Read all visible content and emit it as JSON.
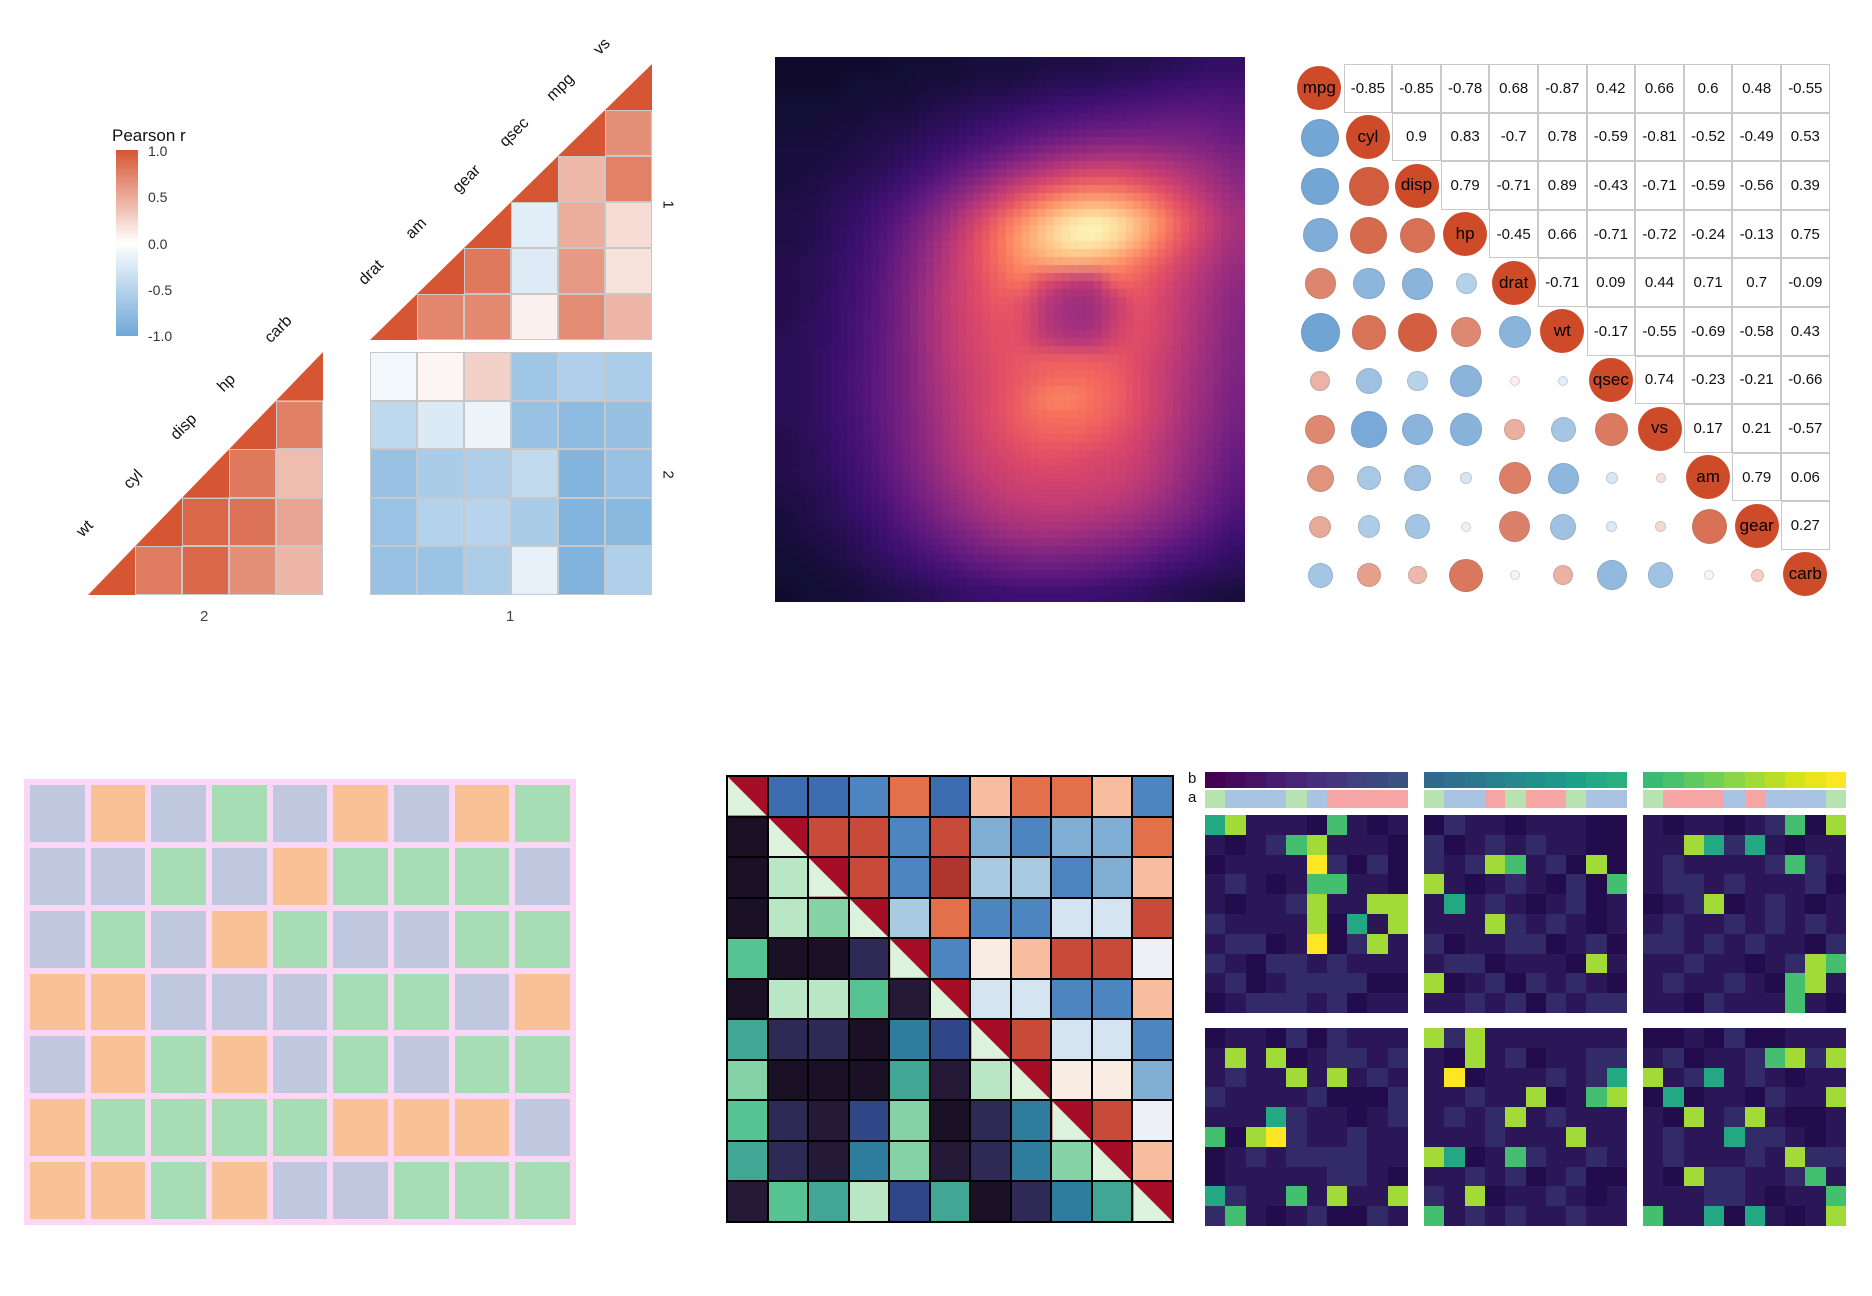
{
  "chart_data": [
    {
      "id": "corr-triangle-facets",
      "type": "heatmap",
      "legend_title": "Pearson r",
      "legend_ticks": [
        "1.0",
        "0.5",
        "0.0",
        "-0.5",
        "-1.0"
      ],
      "facet_x_labels": [
        "2",
        "1"
      ],
      "facet_y_labels": [
        "1",
        "2"
      ],
      "group1_vars": [
        "drat",
        "am",
        "gear",
        "qsec",
        "mpg",
        "vs"
      ],
      "group2_vars": [
        "wt",
        "cyl",
        "disp",
        "hp",
        "carb"
      ],
      "pos_color": "#d65633",
      "neg_color": "#6ea8d8",
      "grid_line_color": "#c8c8c8"
    },
    {
      "id": "density-heatmap",
      "type": "heatmap",
      "colormap": "magma",
      "colormap_stops": [
        [
          0,
          "#000004"
        ],
        [
          0.14,
          "#140e36"
        ],
        [
          0.27,
          "#3b0f70"
        ],
        [
          0.39,
          "#641a80"
        ],
        [
          0.51,
          "#8c2981"
        ],
        [
          0.62,
          "#b73779"
        ],
        [
          0.72,
          "#de4968"
        ],
        [
          0.81,
          "#f7705c"
        ],
        [
          0.88,
          "#fe9f6d"
        ],
        [
          0.95,
          "#fecf92"
        ],
        [
          1,
          "#fcfdbf"
        ]
      ],
      "grid": [
        [
          3,
          3,
          3,
          3,
          3,
          4,
          4,
          4,
          5,
          5,
          5,
          6,
          6,
          6,
          7,
          7,
          8,
          9,
          10,
          10
        ],
        [
          3,
          3,
          3,
          4,
          4,
          4,
          5,
          5,
          6,
          6,
          7,
          8,
          9,
          9,
          10,
          11,
          12,
          13,
          14,
          14
        ],
        [
          4,
          4,
          4,
          4,
          5,
          5,
          6,
          7,
          8,
          9,
          10,
          12,
          13,
          14,
          15,
          16,
          17,
          18,
          18,
          17
        ],
        [
          4,
          4,
          5,
          5,
          6,
          6,
          8,
          9,
          11,
          13,
          15,
          17,
          19,
          21,
          22,
          23,
          24,
          24,
          23,
          21
        ],
        [
          5,
          5,
          5,
          6,
          7,
          8,
          10,
          12,
          15,
          18,
          22,
          26,
          29,
          32,
          33,
          33,
          32,
          30,
          28,
          25
        ],
        [
          5,
          5,
          6,
          7,
          8,
          10,
          13,
          17,
          22,
          28,
          34,
          40,
          45,
          48,
          49,
          47,
          44,
          40,
          35,
          30
        ],
        [
          5,
          6,
          7,
          8,
          10,
          13,
          18,
          24,
          32,
          41,
          50,
          58,
          64,
          67,
          66,
          62,
          56,
          48,
          41,
          34
        ],
        [
          6,
          6,
          8,
          10,
          13,
          17,
          24,
          33,
          44,
          55,
          66,
          75,
          82,
          85,
          83,
          77,
          68,
          57,
          47,
          38
        ],
        [
          6,
          7,
          9,
          11,
          15,
          21,
          30,
          41,
          54,
          67,
          78,
          88,
          95,
          98,
          95,
          87,
          76,
          63,
          51,
          41
        ],
        [
          6,
          7,
          9,
          12,
          17,
          24,
          34,
          46,
          59,
          71,
          82,
          90,
          96,
          97,
          93,
          84,
          72,
          60,
          49,
          40
        ],
        [
          7,
          8,
          10,
          13,
          18,
          26,
          36,
          48,
          60,
          70,
          78,
          83,
          85,
          84,
          80,
          73,
          64,
          54,
          45,
          37
        ],
        [
          7,
          8,
          10,
          14,
          19,
          27,
          38,
          49,
          59,
          67,
          72,
          60,
          52,
          50,
          68,
          66,
          59,
          50,
          42,
          35
        ],
        [
          7,
          8,
          11,
          14,
          20,
          28,
          39,
          50,
          58,
          64,
          62,
          48,
          40,
          40,
          52,
          62,
          56,
          48,
          40,
          33
        ],
        [
          7,
          9,
          11,
          15,
          20,
          28,
          39,
          49,
          57,
          62,
          60,
          46,
          39,
          39,
          52,
          60,
          55,
          47,
          39,
          32
        ],
        [
          8,
          9,
          11,
          15,
          21,
          28,
          39,
          49,
          56,
          61,
          60,
          50,
          46,
          46,
          56,
          60,
          54,
          46,
          38,
          31
        ],
        [
          8,
          9,
          12,
          15,
          21,
          28,
          38,
          48,
          55,
          60,
          63,
          65,
          65,
          64,
          63,
          59,
          52,
          44,
          37,
          30
        ],
        [
          8,
          9,
          12,
          16,
          21,
          28,
          38,
          47,
          54,
          60,
          64,
          68,
          70,
          69,
          65,
          59,
          51,
          43,
          36,
          29
        ],
        [
          8,
          9,
          12,
          16,
          21,
          28,
          37,
          46,
          54,
          60,
          66,
          74,
          75,
          71,
          66,
          59,
          51,
          42,
          35,
          28
        ],
        [
          8,
          9,
          12,
          15,
          21,
          27,
          36,
          45,
          53,
          60,
          66,
          70,
          71,
          69,
          64,
          58,
          50,
          41,
          34,
          27
        ],
        [
          7,
          9,
          11,
          15,
          20,
          27,
          35,
          44,
          52,
          58,
          63,
          66,
          66,
          64,
          60,
          55,
          47,
          39,
          32,
          25
        ],
        [
          7,
          8,
          11,
          14,
          19,
          26,
          34,
          43,
          50,
          55,
          59,
          61,
          60,
          58,
          56,
          52,
          45,
          37,
          30,
          23
        ],
        [
          7,
          8,
          10,
          13,
          18,
          24,
          32,
          40,
          47,
          52,
          55,
          56,
          56,
          55,
          53,
          49,
          43,
          35,
          28,
          21
        ],
        [
          6,
          7,
          9,
          12,
          16,
          22,
          29,
          36,
          43,
          48,
          51,
          52,
          52,
          51,
          49,
          45,
          39,
          32,
          25,
          19
        ],
        [
          5,
          7,
          8,
          11,
          14,
          19,
          25,
          32,
          38,
          43,
          46,
          47,
          47,
          45,
          43,
          39,
          34,
          28,
          22,
          16
        ],
        [
          5,
          6,
          7,
          9,
          12,
          16,
          21,
          26,
          31,
          36,
          39,
          40,
          39,
          37,
          35,
          31,
          27,
          22,
          17,
          13
        ],
        [
          4,
          5,
          6,
          8,
          10,
          13,
          16,
          20,
          24,
          27,
          29,
          30,
          29,
          28,
          26,
          23,
          19,
          16,
          13,
          10
        ],
        [
          4,
          4,
          5,
          6,
          8,
          10,
          12,
          14,
          17,
          19,
          21,
          21,
          21,
          20,
          18,
          16,
          13,
          11,
          9,
          8
        ],
        [
          3,
          4,
          4,
          5,
          6,
          7,
          8,
          10,
          11,
          12,
          13,
          13,
          13,
          12,
          11,
          10,
          8,
          7,
          6,
          5
        ]
      ]
    },
    {
      "id": "corrplot-mixed",
      "type": "heatmap",
      "variables": [
        "mpg",
        "cyl",
        "disp",
        "hp",
        "drat",
        "wt",
        "qsec",
        "vs",
        "am",
        "gear",
        "carb"
      ],
      "matrix": [
        [
          1,
          -0.85,
          -0.85,
          -0.78,
          0.68,
          -0.87,
          0.42,
          0.66,
          0.6,
          0.48,
          -0.55
        ],
        [
          -0.85,
          1,
          0.9,
          0.83,
          -0.7,
          0.78,
          -0.59,
          -0.81,
          -0.52,
          -0.49,
          0.53
        ],
        [
          -0.85,
          0.9,
          1,
          0.79,
          -0.71,
          0.89,
          -0.43,
          -0.71,
          -0.59,
          -0.56,
          0.39
        ],
        [
          -0.78,
          0.83,
          0.79,
          1,
          -0.45,
          0.66,
          -0.71,
          -0.72,
          -0.24,
          -0.13,
          0.75
        ],
        [
          0.68,
          -0.7,
          -0.71,
          -0.45,
          1,
          -0.71,
          0.09,
          0.44,
          0.71,
          0.7,
          -0.09
        ],
        [
          -0.87,
          0.78,
          0.89,
          0.66,
          -0.71,
          1,
          -0.17,
          -0.55,
          -0.69,
          -0.58,
          0.43
        ],
        [
          0.42,
          -0.59,
          -0.43,
          -0.71,
          0.09,
          -0.17,
          1,
          0.74,
          -0.23,
          -0.21,
          -0.66
        ],
        [
          0.66,
          -0.81,
          -0.71,
          -0.72,
          0.44,
          -0.55,
          0.74,
          1,
          0.17,
          0.21,
          -0.57
        ],
        [
          0.6,
          -0.52,
          -0.59,
          -0.24,
          0.71,
          -0.69,
          -0.23,
          0.17,
          1,
          0.79,
          0.06
        ],
        [
          0.48,
          -0.49,
          -0.56,
          -0.13,
          0.7,
          -0.58,
          -0.21,
          0.21,
          0.79,
          1,
          0.27
        ],
        [
          -0.55,
          0.53,
          0.39,
          0.75,
          -0.09,
          0.43,
          -0.66,
          -0.57,
          0.06,
          0.27,
          1
        ]
      ],
      "pos_color": "#cd4b28",
      "neg_color": "#5a96cd",
      "box_border_color": "#c9c9c9"
    },
    {
      "id": "pastel-grid",
      "type": "heatmap",
      "palette": {
        "L": "#bfc8df",
        "P": "#f9c196",
        "G": "#a7ddb4"
      },
      "border_color": "#fbd7f5",
      "rows": [
        "LPLGLPLPG",
        "LLGLPGGGL",
        "LGLPGLLGG",
        "PPLLLGGLP",
        "LPGPLGLGG",
        "PGGGGPPPL",
        "PPGPLLGGG"
      ]
    },
    {
      "id": "split-triangle-matrix",
      "type": "heatmap",
      "diag_upper_color": "#a60d26",
      "diag_lower_color": "#dcf2dc",
      "border_color": "#000000",
      "palette": {
        "K": "#1a1127",
        "k": "#241a38",
        "n": "#2e2a55",
        "N": "#2f4787",
        "t": "#2e7d9c",
        "T": "#42a694",
        "g": "#57c392",
        "h": "#84d2a6",
        "m": "#b9e6c4",
        "B": "#3d6cb0",
        "b": "#4d85c0",
        "l": "#7fafd4",
        "p": "#a8cbe2",
        "v": "#d4e5f1",
        "w": "#edf1f5",
        "q": "#f9ece3",
        "s": "#f8bd9e",
        "o": "#e2714b",
        "r": "#c84a38",
        "R": "#b0352d"
      },
      "rows": [
        "DBBboBsoosb",
        "KDrrbrlbllo",
        "KmDrbRppbls",
        "KmhDpobbvvr",
        "gKKnDbqsrrw",
        "KmmgkDvvbbs",
        "TnnKtNDrvvb",
        "hKKKTkmDqql",
        "gnkNhKntDrw",
        "TnkthknthDs",
        "kgTmNTKntTD"
      ]
    },
    {
      "id": "facet-heatmaps",
      "type": "heatmap",
      "annotation_row_labels": [
        "b",
        "a"
      ],
      "a_palette": {
        "G": "#b7e3b1",
        "B": "#a9c4e2",
        "R": "#f5a6a4"
      },
      "value_palette": {
        "0": "#230c4c",
        "1": "#2b1657",
        "2": "#332a68",
        "7": "#23a884",
        "8": "#44bf70",
        "9": "#a2da37",
        "X": "#fde725"
      },
      "facets": [
        {
          "b": [
            "#440154",
            "#46095c",
            "#471264",
            "#471b6e",
            "#472575",
            "#462e7b",
            "#44377e",
            "#414080",
            "#3d4880",
            "#3a5080"
          ],
          "a": "GBBBGBRRRR",
          "grid": [
            "7911108101",
            "1012891110",
            "01111X2020",
            "1210188110",
            "1011291199",
            "2111190719",
            "12201X0291",
            "2102212111",
            "1201222200",
            "0122212011"
          ]
        },
        {
          "b": [
            "#31688e",
            "#2e708e",
            "#2b788e",
            "#28808e",
            "#24888e",
            "#21908d",
            "#1f988b",
            "#1fa188",
            "#22a985",
            "#28b17f"
          ],
          "a": "GBBRGRRGBB",
          "grid": [
            "0211011100",
            "2012121100",
            "2129812090",
            "9101210208",
            "1712101201",
            "1119212101",
            "2011220120",
            "1220111091",
            "9012021210",
            "1121202122"
          ]
        },
        {
          "b": [
            "#3abb75",
            "#4ac16d",
            "#5ec962",
            "#73d056",
            "#8bd646",
            "#a2da37",
            "#bade28",
            "#d2e21b",
            "#eae51a",
            "#fde725"
          ],
          "a": "GRRRBRBBBG",
          "grid": [
            "1011012809",
            "1197271011",
            "1211112821",
            "1221211120",
            "0129012101",
            "1211212121",
            "2212121102",
            "1121101298",
            "1211210891",
            "1102111810"
          ]
        },
        {
          "b": null,
          "a": null,
          "grid": [
            "0110202111",
            "1919012212",
            "1211919121",
            "2111120002",
            "1117211012",
            "809X211211",
            "0121222211",
            "0111112210",
            "7211819119",
            "2810120021"
          ]
        },
        {
          "b": null,
          "a": null,
          "grid": [
            "9291111111",
            "1091201122",
            "1X01112127",
            "1121190189",
            "1212912111",
            "1112111911",
            "9701821121",
            "1121201200",
            "2190112101",
            "8121211211"
          ]
        },
        {
          "b": null,
          "a": null,
          "grid": [
            "0010200111",
            "1201128929",
            "9127121011",
            "0701102119",
            "1091291001",
            "1211722101",
            "1211121922",
            "1092211281",
            "1112210118",
            "8117071019"
          ]
        }
      ]
    }
  ]
}
